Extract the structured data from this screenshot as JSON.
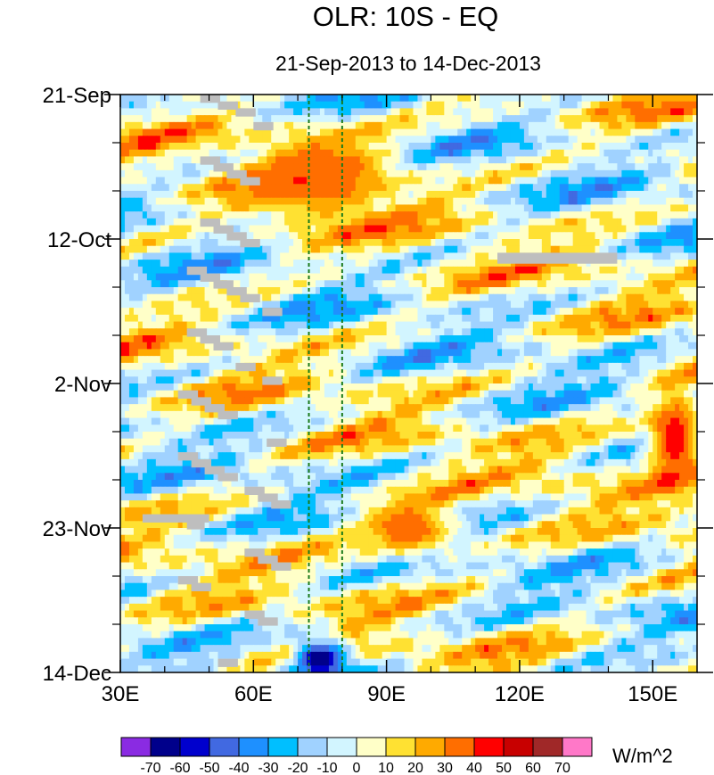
{
  "chart_data": {
    "type": "heatmap",
    "title": "OLR: 10S - EQ",
    "subtitle": "21-Sep-2013 to 14-Dec-2013",
    "xlabel": "",
    "ylabel": "",
    "xlim": [
      30,
      160
    ],
    "ylim_days": [
      0,
      84
    ],
    "x_ticks": [
      {
        "value": 30,
        "label": "30E"
      },
      {
        "value": 60,
        "label": "60E"
      },
      {
        "value": 90,
        "label": "90E"
      },
      {
        "value": 120,
        "label": "120E"
      },
      {
        "value": 150,
        "label": "150E"
      }
    ],
    "y_ticks": [
      {
        "day": 0,
        "label": "21-Sep"
      },
      {
        "day": 21,
        "label": "12-Oct"
      },
      {
        "day": 42,
        "label": "2-Nov"
      },
      {
        "day": 63,
        "label": "23-Nov"
      },
      {
        "day": 84,
        "label": "14-Dec"
      }
    ],
    "reference_lines_lon": [
      72.5,
      80
    ],
    "colorbar": {
      "units": "W/m^2",
      "labels": [
        "-70",
        "-60",
        "-50",
        "-40",
        "-30",
        "-20",
        "-10",
        "0",
        "10",
        "20",
        "30",
        "40",
        "50",
        "60",
        "70"
      ],
      "colors": [
        "#8a2be2",
        "#00008b",
        "#0000cd",
        "#4169e1",
        "#1e90ff",
        "#00bfff",
        "#a0d2ff",
        "#d2f5ff",
        "#ffffc8",
        "#ffe132",
        "#ffaa00",
        "#ff6e00",
        "#ff0000",
        "#c80000",
        "#a02828",
        "#ff78c8"
      ]
    },
    "features": [
      {
        "lon_range": [
          60,
          90
        ],
        "day_range": [
          6,
          18
        ],
        "anomaly": 40,
        "note": "positive OLR blob near 70-80E"
      },
      {
        "lon_range": [
          70,
          80
        ],
        "day_range": [
          80,
          84
        ],
        "anomaly": -70,
        "note": "strong negative anomaly near 72-80E"
      },
      {
        "lon_range": [
          85,
          105
        ],
        "day_range": [
          60,
          66
        ],
        "anomaly": 40,
        "note": "positive anomaly near 90-100E"
      },
      {
        "lon_range": [
          150,
          160
        ],
        "day_range": [
          44,
          56
        ],
        "anomaly": 50,
        "note": "positive anomaly at eastern edge"
      }
    ]
  }
}
